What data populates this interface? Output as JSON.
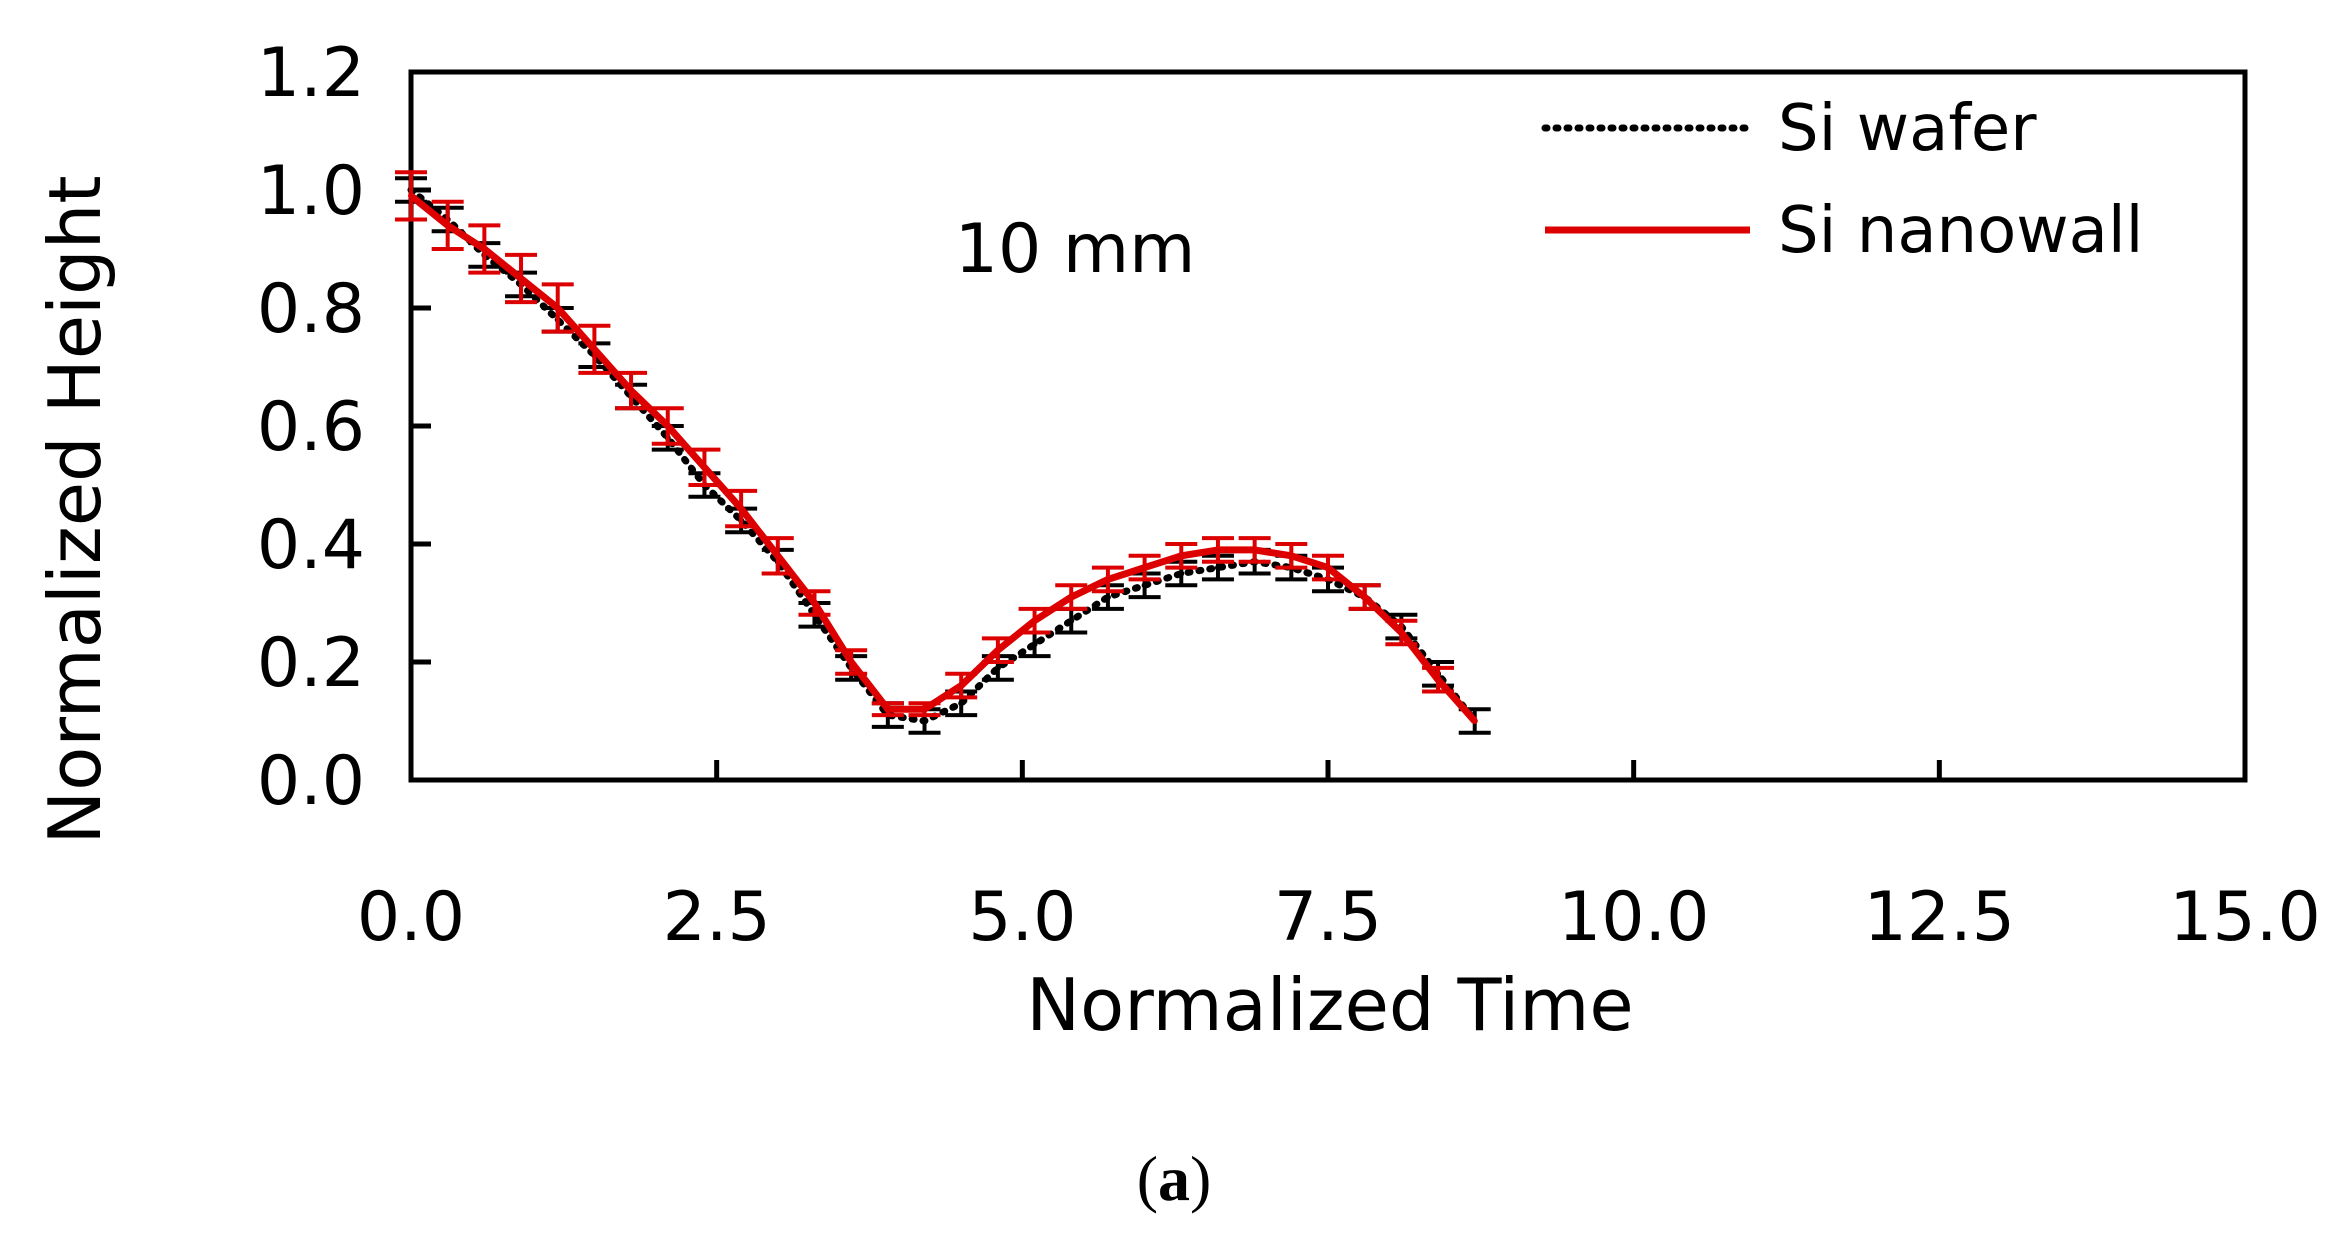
{
  "chart_data": {
    "type": "line",
    "xlabel": "Normalized Time",
    "ylabel": "Normalized Height",
    "xlim": [
      0,
      15
    ],
    "ylim": [
      0,
      1.2
    ],
    "x_ticks": [
      "0.0",
      "2.5",
      "5.0",
      "7.5",
      "10.0",
      "12.5",
      "15.0"
    ],
    "y_ticks": [
      "0.0",
      "0.2",
      "0.4",
      "0.6",
      "0.8",
      "1.0",
      "1.2"
    ],
    "annotation": "10 mm",
    "legend_position": "top-right",
    "grid": false,
    "series": [
      {
        "name": "Si wafer",
        "style": "dotted",
        "color": "#000000",
        "x": [
          0.0,
          0.3,
          0.6,
          0.9,
          1.2,
          1.5,
          1.8,
          2.1,
          2.4,
          2.7,
          3.0,
          3.3,
          3.6,
          3.9,
          4.2,
          4.5,
          4.8,
          5.1,
          5.4,
          5.7,
          6.0,
          6.3,
          6.6,
          6.9,
          7.2,
          7.5,
          7.8,
          8.1,
          8.4,
          8.7
        ],
        "y": [
          1.0,
          0.95,
          0.89,
          0.84,
          0.78,
          0.72,
          0.65,
          0.58,
          0.5,
          0.44,
          0.37,
          0.28,
          0.19,
          0.11,
          0.1,
          0.13,
          0.19,
          0.23,
          0.27,
          0.31,
          0.33,
          0.35,
          0.36,
          0.37,
          0.36,
          0.34,
          0.31,
          0.26,
          0.18,
          0.1
        ],
        "error": [
          0.02,
          0.02,
          0.02,
          0.02,
          0.02,
          0.02,
          0.02,
          0.02,
          0.02,
          0.02,
          0.02,
          0.02,
          0.02,
          0.02,
          0.02,
          0.02,
          0.02,
          0.02,
          0.02,
          0.02,
          0.02,
          0.02,
          0.02,
          0.02,
          0.02,
          0.02,
          0.02,
          0.02,
          0.02,
          0.02
        ]
      },
      {
        "name": "Si nanowall",
        "style": "solid",
        "color": "#dd0000",
        "x": [
          0.0,
          0.3,
          0.6,
          0.9,
          1.2,
          1.5,
          1.8,
          2.1,
          2.4,
          2.7,
          3.0,
          3.3,
          3.6,
          3.9,
          4.2,
          4.5,
          4.8,
          5.1,
          5.4,
          5.7,
          6.0,
          6.3,
          6.6,
          6.9,
          7.2,
          7.5,
          7.8,
          8.1,
          8.4,
          8.7
        ],
        "y": [
          0.99,
          0.94,
          0.9,
          0.85,
          0.8,
          0.73,
          0.66,
          0.6,
          0.53,
          0.46,
          0.38,
          0.3,
          0.2,
          0.12,
          0.12,
          0.16,
          0.22,
          0.27,
          0.31,
          0.34,
          0.36,
          0.38,
          0.39,
          0.39,
          0.38,
          0.36,
          0.31,
          0.25,
          0.17,
          0.1
        ],
        "error": [
          0.04,
          0.04,
          0.04,
          0.04,
          0.04,
          0.04,
          0.03,
          0.03,
          0.03,
          0.03,
          0.03,
          0.02,
          0.02,
          0.01,
          0.01,
          0.02,
          0.02,
          0.02,
          0.02,
          0.02,
          0.02,
          0.02,
          0.02,
          0.02,
          0.02,
          0.02,
          0.02,
          0.02,
          0.02,
          0.0
        ]
      }
    ]
  },
  "caption": {
    "open": "(",
    "letter": "a",
    "close": ")"
  }
}
